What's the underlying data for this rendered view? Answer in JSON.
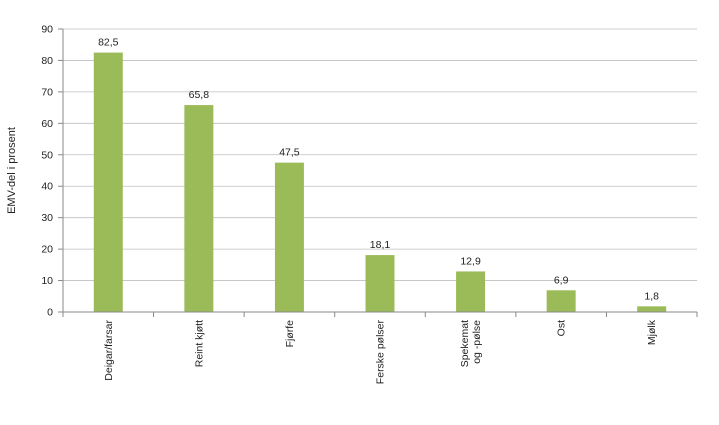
{
  "chart_data": {
    "type": "bar",
    "categories": [
      "Deigar/farsar",
      "Reint kjøtt",
      "Fjørfe",
      "Ferske pølser",
      "Spekemat og -pølse",
      "Ost",
      "Mjølk"
    ],
    "category_label_lines": [
      [
        "Deigar/farsar"
      ],
      [
        "Reint kjøtt"
      ],
      [
        "Fjørfe"
      ],
      [
        "Ferske pølser"
      ],
      [
        "Spekemat",
        "og -pølse"
      ],
      [
        "Ost"
      ],
      [
        "Mjølk"
      ]
    ],
    "values": [
      82.5,
      65.8,
      47.5,
      18.1,
      12.9,
      6.9,
      1.8
    ],
    "value_labels": [
      "82,5",
      "65,8",
      "47,5",
      "18,1",
      "12,9",
      "6,9",
      "1,8"
    ],
    "ylabel": "EMV-del i prosent",
    "xlabel": "",
    "ylim": [
      0,
      90
    ],
    "yticks": [
      0,
      10,
      20,
      30,
      40,
      50,
      60,
      70,
      80,
      90
    ],
    "grid": true,
    "bar_color": "#9bbb59"
  }
}
